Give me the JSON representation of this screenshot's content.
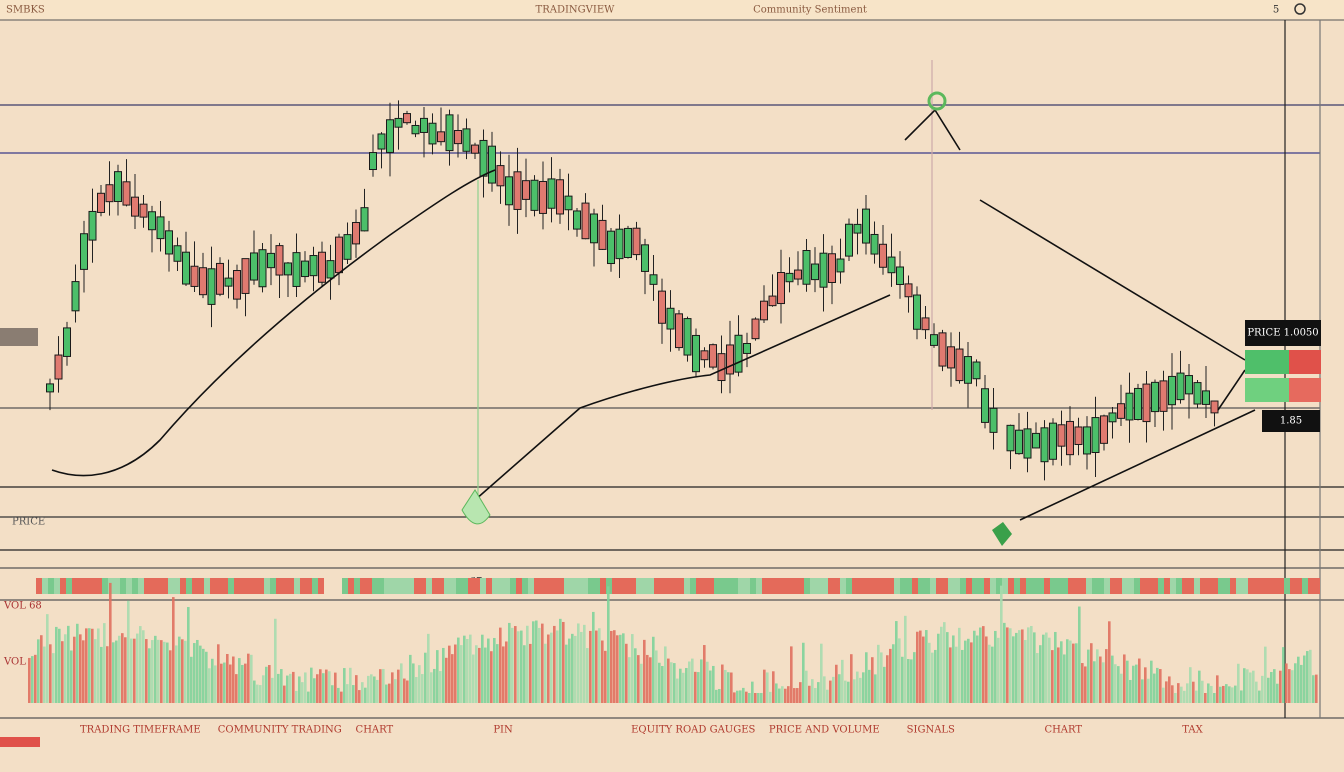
{
  "toolbar": {
    "left": "SMBKS",
    "center": "TRADINGVIEW",
    "right": "Community Sentiment",
    "counter": "5"
  },
  "price_labels": {
    "top": "PRICE 1.0050",
    "bottom": "1.85"
  },
  "left_labels": [
    "PRICE",
    "VOL 68",
    "VOL"
  ],
  "volume_tag": "67",
  "bottom_bar": [
    "TRADING TIMEFRAME",
    "COMMUNITY TRADING",
    "CHART",
    "PIN",
    "EQUITY ROAD GAUGES",
    "PRICE AND VOLUME",
    "SIGNALS",
    "CHART",
    "TAX"
  ]
}
